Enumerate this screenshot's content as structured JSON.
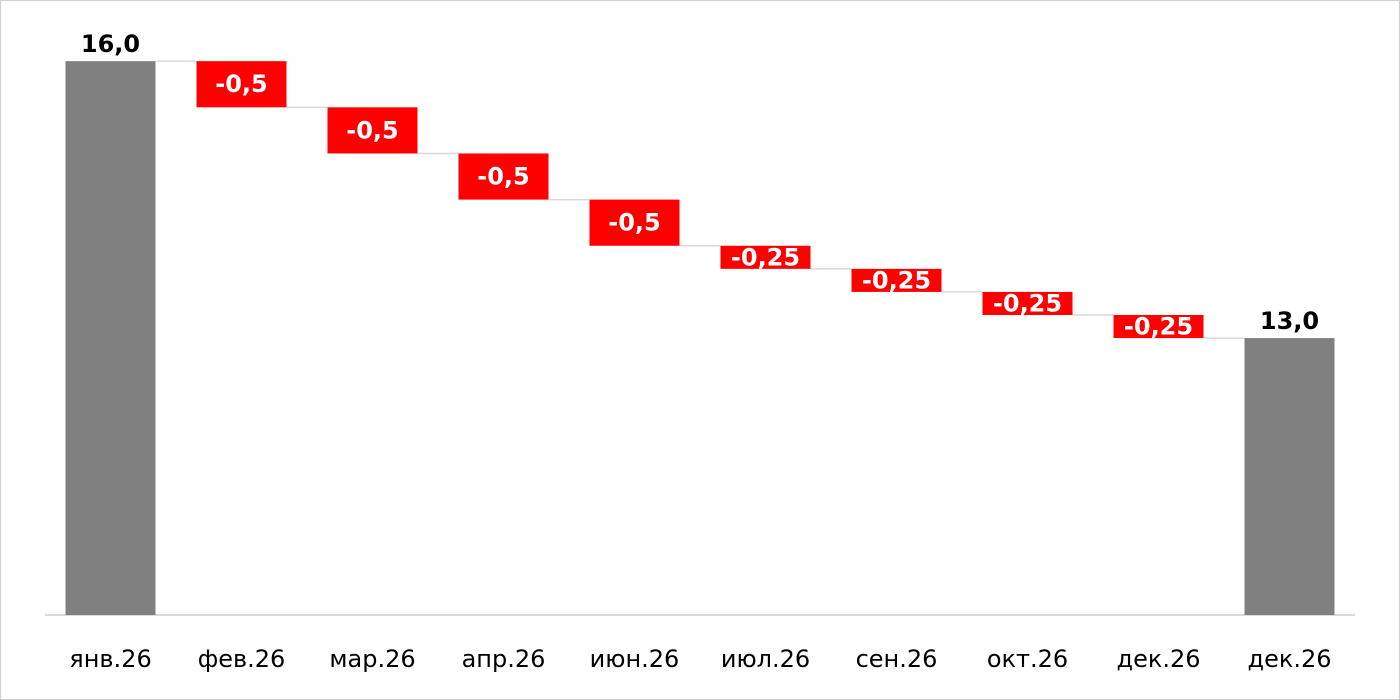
{
  "chart_data": {
    "type": "waterfall",
    "categories": [
      "янв.26",
      "фев.26",
      "мар.26",
      "апр.26",
      "июн.26",
      "июл.26",
      "сен.26",
      "окт.26",
      "дек.26",
      "дек.26"
    ],
    "values": [
      16.0,
      -0.5,
      -0.5,
      -0.5,
      -0.5,
      -0.25,
      -0.25,
      -0.25,
      -0.25,
      13.0
    ],
    "value_labels": [
      "16,0",
      "-0,5",
      "-0,5",
      "-0,5",
      "-0,5",
      "-0,25",
      "-0,25",
      "-0,25",
      "-0,25",
      "13,0"
    ],
    "measures": [
      "absolute",
      "relative",
      "relative",
      "relative",
      "relative",
      "relative",
      "relative",
      "relative",
      "relative",
      "total"
    ],
    "color": "#ff0000",
    "total_color": "#808080",
    "ylim": [
      10,
      16.5
    ]
  }
}
